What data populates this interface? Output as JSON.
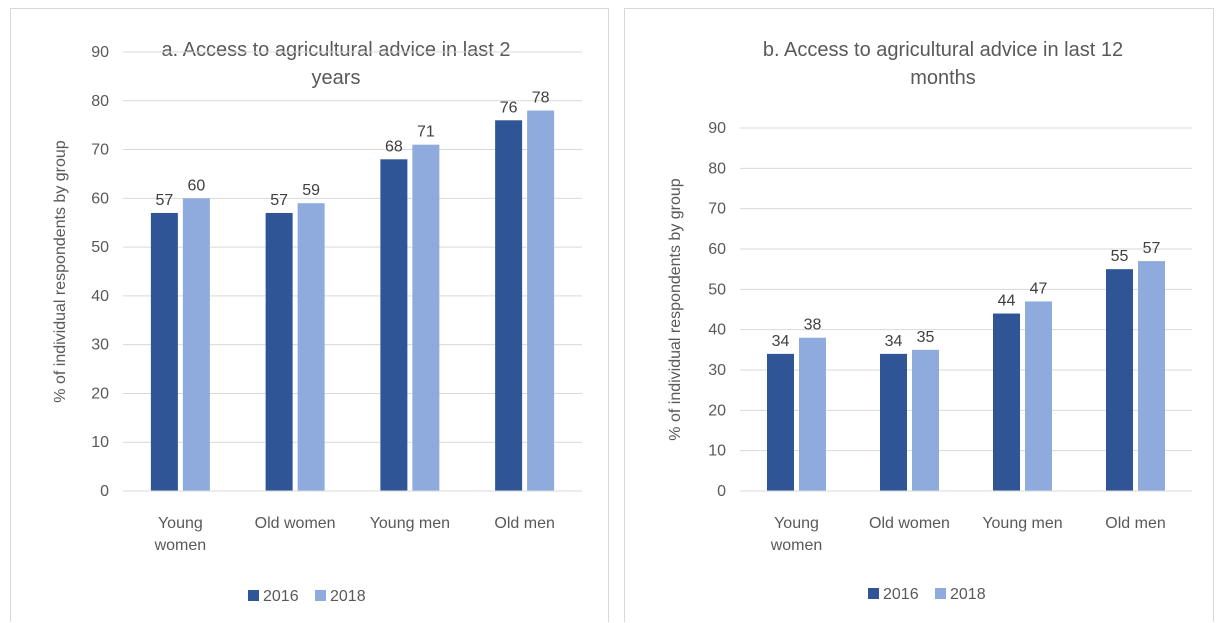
{
  "colors": {
    "s2016": "#2f5597",
    "s2018": "#8faadc",
    "grid": "#d9d9d9"
  },
  "chart_data": [
    {
      "type": "bar",
      "title": [
        "a. Access to agricultural advice in last 2",
        "years"
      ],
      "ylabel": "% of individual respondents by group",
      "categories": [
        [
          "Young",
          "women"
        ],
        [
          "Old women"
        ],
        [
          "Young men"
        ],
        [
          "Old men"
        ]
      ],
      "ylim": [
        0,
        90
      ],
      "yticks": [
        0,
        10,
        20,
        30,
        40,
        50,
        60,
        70,
        80,
        90
      ],
      "grid": true,
      "legend": "bottom",
      "series": [
        {
          "name": "2016",
          "values": [
            57,
            57,
            68,
            76
          ]
        },
        {
          "name": "2018",
          "values": [
            60,
            59,
            71,
            78
          ]
        }
      ]
    },
    {
      "type": "bar",
      "title": [
        "b. Access to agricultural advice in last 12",
        "months"
      ],
      "ylabel": "% of individual respondents by group",
      "categories": [
        [
          "Young",
          "women"
        ],
        [
          "Old women"
        ],
        [
          "Young men"
        ],
        [
          "Old men"
        ]
      ],
      "ylim": [
        0,
        90
      ],
      "yticks": [
        0,
        10,
        20,
        30,
        40,
        50,
        60,
        70,
        80,
        90
      ],
      "grid": true,
      "legend": "bottom",
      "series": [
        {
          "name": "2016",
          "values": [
            34,
            34,
            44,
            55
          ]
        },
        {
          "name": "2018",
          "values": [
            38,
            35,
            47,
            57
          ]
        }
      ]
    }
  ]
}
